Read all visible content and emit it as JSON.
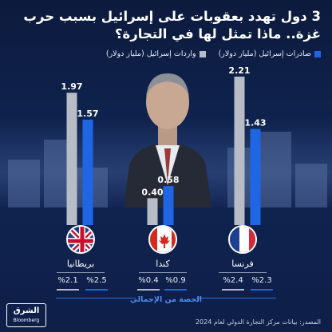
{
  "title": "3 دول تهدد بعقوبات على إسرائيل بسبب حرب غزة.. ماذا تمثل لها في التجارة؟",
  "legend": {
    "exports_label": "صادرات إسرائيل (مليار دولار)",
    "imports_label": "واردات إسرائيل (مليار دولار)"
  },
  "colors": {
    "exports": "#1f66e5",
    "imports": "#b8bcc6",
    "background": "#0f2350"
  },
  "chart_data": {
    "type": "bar",
    "categories": [
      "فرنسا",
      "كندا",
      "بريطانيا"
    ],
    "series": [
      {
        "name": "صادرات إسرائيل (مليار دولار)",
        "values": [
          1.43,
          0.58,
          1.57
        ]
      },
      {
        "name": "واردات إسرائيل (مليار دولار)",
        "values": [
          2.21,
          0.4,
          1.97
        ]
      }
    ],
    "ylim": [
      0,
      2.21
    ],
    "grid": false
  },
  "countries": [
    {
      "name": "بريطانيا",
      "flag": "uk-flag-icon",
      "exports_share": "%2.5",
      "imports_share": "%2.1"
    },
    {
      "name": "كندا",
      "flag": "canada-flag-icon",
      "exports_share": "%0.9",
      "imports_share": "%0.4"
    },
    {
      "name": "فرنسا",
      "flag": "france-flag-icon",
      "exports_share": "%2.3",
      "imports_share": "%2.4"
    }
  ],
  "share_caption": "الحصة من الإجمالي",
  "source": "المصدر: بيانات مركز التجارة الدولي لعام 2024",
  "logo": {
    "brand": "الشرق",
    "sub": "Bloomberg"
  }
}
